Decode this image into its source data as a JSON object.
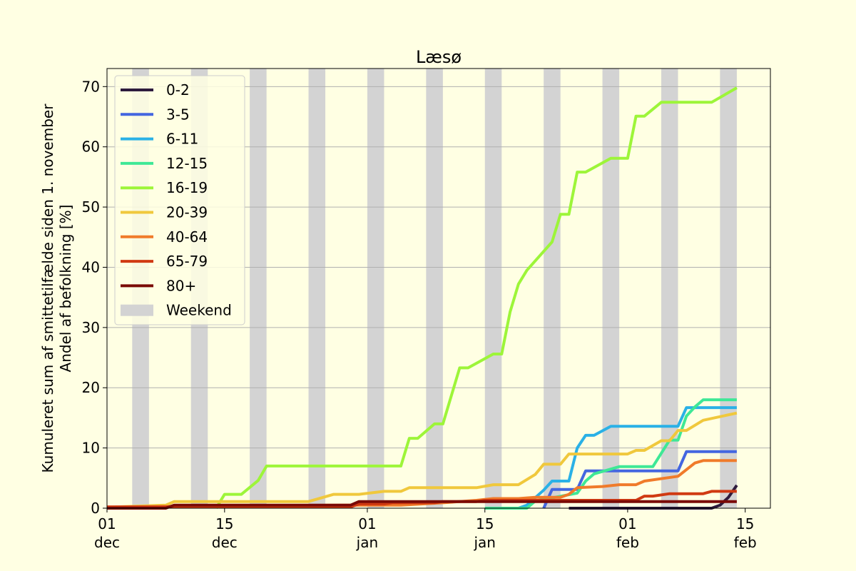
{
  "chart_data": {
    "type": "line",
    "title": "Læsø",
    "ylabel_line1": "Kumuleret sum af smittetilfælde siden 1. november",
    "ylabel_line2": "Andel af befolkning [%]",
    "xlabel": "",
    "ylim": [
      0,
      73
    ],
    "yticks": [
      0,
      10,
      20,
      30,
      40,
      50,
      60,
      70
    ],
    "xlim": [
      "2021-12-01",
      "2022-02-18"
    ],
    "xticks": [
      {
        "date": "2021-12-01",
        "label": "01\ndec"
      },
      {
        "date": "2021-12-15",
        "label": "15\ndec"
      },
      {
        "date": "2022-01-01",
        "label": "01\njan"
      },
      {
        "date": "2022-01-15",
        "label": "15\njan"
      },
      {
        "date": "2022-02-01",
        "label": "01\nfeb"
      },
      {
        "date": "2022-02-15",
        "label": "15\nfeb"
      }
    ],
    "weekends": [
      "2021-12-04",
      "2021-12-11",
      "2021-12-18",
      "2021-12-25",
      "2022-01-01",
      "2022-01-08",
      "2022-01-15",
      "2022-01-22",
      "2022-01-29",
      "2022-02-05",
      "2022-02-12"
    ],
    "grid": "y",
    "legend_position": "upper-left",
    "colors": {
      "background": "#ffffe3",
      "weekend": "#d3d3d3",
      "grid": "#b0b0b0"
    },
    "series": [
      {
        "name": "0-2",
        "color": "#2d1b3d",
        "points": [
          [
            "2022-01-25",
            0
          ],
          [
            "2022-02-11",
            0
          ],
          [
            "2022-02-12",
            0.5
          ],
          [
            "2022-02-13",
            1.8
          ],
          [
            "2022-02-14",
            3.8
          ]
        ]
      },
      {
        "name": "3-5",
        "color": "#4466e0",
        "points": [
          [
            "2022-01-22",
            0
          ],
          [
            "2022-01-23",
            3.1
          ],
          [
            "2022-01-26",
            3.1
          ],
          [
            "2022-01-27",
            6.2
          ],
          [
            "2022-02-07",
            6.2
          ],
          [
            "2022-02-08",
            9.4
          ],
          [
            "2022-02-14",
            9.4
          ]
        ]
      },
      {
        "name": "6-11",
        "color": "#2ab1e6",
        "points": [
          [
            "2022-01-19",
            0
          ],
          [
            "2022-01-20",
            0.5
          ],
          [
            "2022-01-22",
            3
          ],
          [
            "2022-01-23",
            4.5
          ],
          [
            "2022-01-25",
            4.5
          ],
          [
            "2022-01-26",
            10
          ],
          [
            "2022-01-27",
            12.1
          ],
          [
            "2022-01-28",
            12.1
          ],
          [
            "2022-01-30",
            13.6
          ],
          [
            "2022-02-07",
            13.6
          ],
          [
            "2022-02-08",
            16.7
          ],
          [
            "2022-02-14",
            16.7
          ]
        ]
      },
      {
        "name": "12-15",
        "color": "#3ee896",
        "points": [
          [
            "2022-01-15",
            0
          ],
          [
            "2022-01-20",
            0
          ],
          [
            "2022-01-21",
            1.2
          ],
          [
            "2022-01-26",
            2.5
          ],
          [
            "2022-01-27",
            4.5
          ],
          [
            "2022-01-28",
            5.7
          ],
          [
            "2022-01-31",
            6.9
          ],
          [
            "2022-02-04",
            6.9
          ],
          [
            "2022-02-06",
            11.3
          ],
          [
            "2022-02-07",
            11.3
          ],
          [
            "2022-02-08",
            15.3
          ],
          [
            "2022-02-09",
            16.8
          ],
          [
            "2022-02-10",
            18
          ],
          [
            "2022-02-14",
            18
          ]
        ]
      },
      {
        "name": "16-19",
        "color": "#9df539",
        "points": [
          [
            "2021-12-14",
            0
          ],
          [
            "2021-12-15",
            2.3
          ],
          [
            "2021-12-17",
            2.3
          ],
          [
            "2021-12-19",
            4.6
          ],
          [
            "2021-12-20",
            7
          ],
          [
            "2022-01-05",
            7
          ],
          [
            "2022-01-06",
            11.6
          ],
          [
            "2022-01-07",
            11.6
          ],
          [
            "2022-01-09",
            14
          ],
          [
            "2022-01-10",
            14
          ],
          [
            "2022-01-12",
            23.3
          ],
          [
            "2022-01-13",
            23.3
          ],
          [
            "2022-01-16",
            25.6
          ],
          [
            "2022-01-17",
            25.6
          ],
          [
            "2022-01-18",
            32.6
          ],
          [
            "2022-01-19",
            37.2
          ],
          [
            "2022-01-20",
            39.5
          ],
          [
            "2022-01-23",
            44.2
          ],
          [
            "2022-01-24",
            48.8
          ],
          [
            "2022-01-25",
            48.8
          ],
          [
            "2022-01-26",
            55.8
          ],
          [
            "2022-01-27",
            55.8
          ],
          [
            "2022-01-30",
            58.1
          ],
          [
            "2022-02-01",
            58.1
          ],
          [
            "2022-02-02",
            65.1
          ],
          [
            "2022-02-03",
            65.1
          ],
          [
            "2022-02-05",
            67.4
          ],
          [
            "2022-02-11",
            67.4
          ],
          [
            "2022-02-14",
            69.8
          ]
        ]
      },
      {
        "name": "20-39",
        "color": "#f0c83c",
        "points": [
          [
            "2021-12-02",
            0.2
          ],
          [
            "2021-12-08",
            0.5
          ],
          [
            "2021-12-09",
            1.1
          ],
          [
            "2021-12-25",
            1.1
          ],
          [
            "2021-12-28",
            2.3
          ],
          [
            "2021-12-31",
            2.3
          ],
          [
            "2022-01-03",
            2.8
          ],
          [
            "2022-01-05",
            2.8
          ],
          [
            "2022-01-06",
            3.4
          ],
          [
            "2022-01-14",
            3.4
          ],
          [
            "2022-01-16",
            3.9
          ],
          [
            "2022-01-19",
            3.9
          ],
          [
            "2022-01-21",
            5.6
          ],
          [
            "2022-01-22",
            7.3
          ],
          [
            "2022-01-24",
            7.3
          ],
          [
            "2022-01-25",
            9
          ],
          [
            "2022-02-01",
            9
          ],
          [
            "2022-02-02",
            9.6
          ],
          [
            "2022-02-03",
            9.6
          ],
          [
            "2022-02-05",
            11.2
          ],
          [
            "2022-02-06",
            11.2
          ],
          [
            "2022-02-07",
            12.9
          ],
          [
            "2022-02-08",
            12.9
          ],
          [
            "2022-02-10",
            14.6
          ],
          [
            "2022-02-14",
            15.8
          ]
        ]
      },
      {
        "name": "40-64",
        "color": "#f07b2a",
        "points": [
          [
            "2021-12-01",
            0.2
          ],
          [
            "2021-12-29",
            0.5
          ],
          [
            "2022-01-05",
            0.5
          ],
          [
            "2022-01-10",
            0.9
          ],
          [
            "2022-01-14",
            1.3
          ],
          [
            "2022-01-16",
            1.6
          ],
          [
            "2022-01-19",
            1.6
          ],
          [
            "2022-01-21",
            1.8
          ],
          [
            "2022-01-24",
            1.8
          ],
          [
            "2022-01-25",
            2.3
          ],
          [
            "2022-01-26",
            3.4
          ],
          [
            "2022-01-29",
            3.6
          ],
          [
            "2022-01-31",
            3.9
          ],
          [
            "2022-02-02",
            3.9
          ],
          [
            "2022-02-03",
            4.5
          ],
          [
            "2022-02-07",
            5.3
          ],
          [
            "2022-02-09",
            7.5
          ],
          [
            "2022-02-10",
            7.9
          ],
          [
            "2022-02-14",
            7.9
          ]
        ]
      },
      {
        "name": "65-79",
        "color": "#d03a12",
        "points": [
          [
            "2021-12-01",
            0.2
          ],
          [
            "2021-12-30",
            0.2
          ],
          [
            "2021-12-31",
            0.7
          ],
          [
            "2022-01-03",
            0.7
          ],
          [
            "2022-01-04",
            0.9
          ],
          [
            "2022-01-09",
            0.9
          ],
          [
            "2022-01-10",
            1.1
          ],
          [
            "2022-01-14",
            1.1
          ],
          [
            "2022-01-15",
            1.3
          ],
          [
            "2022-02-02",
            1.3
          ],
          [
            "2022-02-03",
            2
          ],
          [
            "2022-02-04",
            2
          ],
          [
            "2022-02-06",
            2.4
          ],
          [
            "2022-02-10",
            2.4
          ],
          [
            "2022-02-11",
            2.8
          ],
          [
            "2022-02-14",
            2.8
          ]
        ]
      },
      {
        "name": "80+",
        "color": "#7a0a06",
        "points": [
          [
            "2021-12-01",
            0
          ],
          [
            "2021-12-08",
            0
          ],
          [
            "2021-12-09",
            0.5
          ],
          [
            "2021-12-30",
            0.5
          ],
          [
            "2021-12-31",
            1.1
          ],
          [
            "2022-02-14",
            1.1
          ]
        ]
      }
    ],
    "legend": [
      "0-2",
      "3-5",
      "6-11",
      "12-15",
      "16-19",
      "20-39",
      "40-64",
      "65-79",
      "80+",
      "Weekend"
    ]
  }
}
